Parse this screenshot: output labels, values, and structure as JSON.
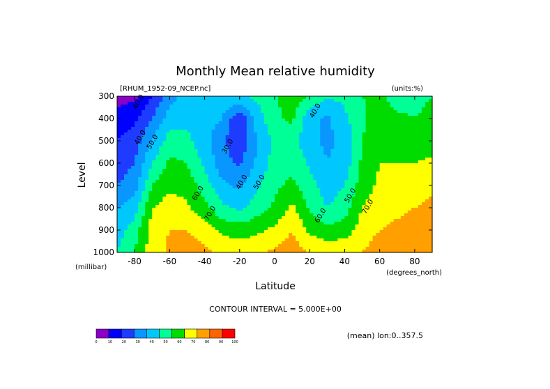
{
  "chart_data": {
    "type": "contour",
    "title": "Monthly Mean relative humidity",
    "source_label": "[RHUM_1952-09_NCEP.nc]",
    "units_label": "(units:%)",
    "xlabel": "Latitude",
    "ylabel": "Level",
    "x_unit_label": "(degrees_north)",
    "y_unit_label": "(millibar)",
    "xlim": [
      -90,
      90
    ],
    "ylim": [
      300,
      1000
    ],
    "y_inverted": true,
    "x_ticks": [
      -80,
      -60,
      -40,
      -20,
      0,
      20,
      40,
      60,
      80
    ],
    "y_ticks": [
      300,
      400,
      500,
      600,
      700,
      800,
      900,
      1000
    ],
    "contour_interval_text": "CONTOUR INTERVAL = 5.000E+00",
    "average_note": "(mean) lon:0..357.5",
    "colorbar": {
      "levels": [
        0,
        10,
        20,
        30,
        40,
        50,
        60,
        70,
        80,
        90,
        100
      ],
      "colors": [
        "#8b00c6",
        "#0000ff",
        "#1e3cff",
        "#0a96ff",
        "#00c8ff",
        "#00ff96",
        "#00dc00",
        "#ffff00",
        "#ffa000",
        "#ff6400",
        "#ff0000"
      ]
    },
    "contour_labels": [
      {
        "text": "40.0",
        "x": -79,
        "y": 360
      },
      {
        "text": "40.0",
        "x": -78,
        "y": 520
      },
      {
        "text": "50.0",
        "x": -71,
        "y": 540
      },
      {
        "text": "30.0",
        "x": -28,
        "y": 560
      },
      {
        "text": "40.0",
        "x": -20,
        "y": 720
      },
      {
        "text": "50.0",
        "x": -10,
        "y": 720
      },
      {
        "text": "40.0",
        "x": 22,
        "y": 400
      },
      {
        "text": "60.0",
        "x": -45,
        "y": 770
      },
      {
        "text": "70.0",
        "x": -38,
        "y": 860
      },
      {
        "text": "50.0",
        "x": 42,
        "y": 780
      },
      {
        "text": "60.0",
        "x": 25,
        "y": 870
      },
      {
        "text": "70.0",
        "x": 52,
        "y": 830
      }
    ],
    "rh_profiles": [
      {
        "lat": -90,
        "values": [
          5,
          15,
          20,
          25,
          30,
          40,
          45,
          50
        ]
      },
      {
        "lat": -80,
        "values": [
          8,
          18,
          25,
          30,
          35,
          45,
          55,
          60
        ]
      },
      {
        "lat": -70,
        "values": [
          20,
          30,
          40,
          50,
          60,
          70,
          75,
          75
        ]
      },
      {
        "lat": -60,
        "values": [
          35,
          45,
          55,
          62,
          68,
          75,
          80,
          82
        ]
      },
      {
        "lat": -50,
        "values": [
          45,
          48,
          52,
          60,
          66,
          72,
          80,
          85
        ]
      },
      {
        "lat": -40,
        "values": [
          48,
          45,
          44,
          48,
          55,
          63,
          75,
          82
        ]
      },
      {
        "lat": -30,
        "values": [
          48,
          40,
          32,
          34,
          42,
          52,
          68,
          78
        ]
      },
      {
        "lat": -20,
        "values": [
          50,
          20,
          22,
          28,
          38,
          48,
          65,
          76
        ]
      },
      {
        "lat": -10,
        "values": [
          52,
          45,
          40,
          42,
          48,
          55,
          68,
          78
        ]
      },
      {
        "lat": 0,
        "values": [
          58,
          58,
          52,
          55,
          58,
          62,
          72,
          82
        ]
      },
      {
        "lat": 10,
        "values": [
          68,
          62,
          55,
          58,
          62,
          72,
          80,
          85
        ]
      },
      {
        "lat": 20,
        "values": [
          58,
          42,
          42,
          48,
          54,
          58,
          68,
          80
        ]
      },
      {
        "lat": 30,
        "values": [
          52,
          38,
          38,
          40,
          45,
          50,
          62,
          78
        ]
      },
      {
        "lat": 40,
        "values": [
          52,
          48,
          42,
          44,
          50,
          55,
          65,
          78
        ]
      },
      {
        "lat": 50,
        "values": [
          60,
          58,
          60,
          62,
          65,
          70,
          75,
          80
        ]
      },
      {
        "lat": 60,
        "values": [
          62,
          66,
          68,
          70,
          72,
          76,
          80,
          85
        ]
      },
      {
        "lat": 70,
        "values": [
          55,
          62,
          65,
          70,
          74,
          78,
          82,
          87
        ]
      },
      {
        "lat": 80,
        "values": [
          58,
          60,
          64,
          70,
          76,
          80,
          84,
          88
        ]
      },
      {
        "lat": 90,
        "values": [
          60,
          62,
          66,
          72,
          78,
          82,
          86,
          88
        ]
      }
    ]
  }
}
